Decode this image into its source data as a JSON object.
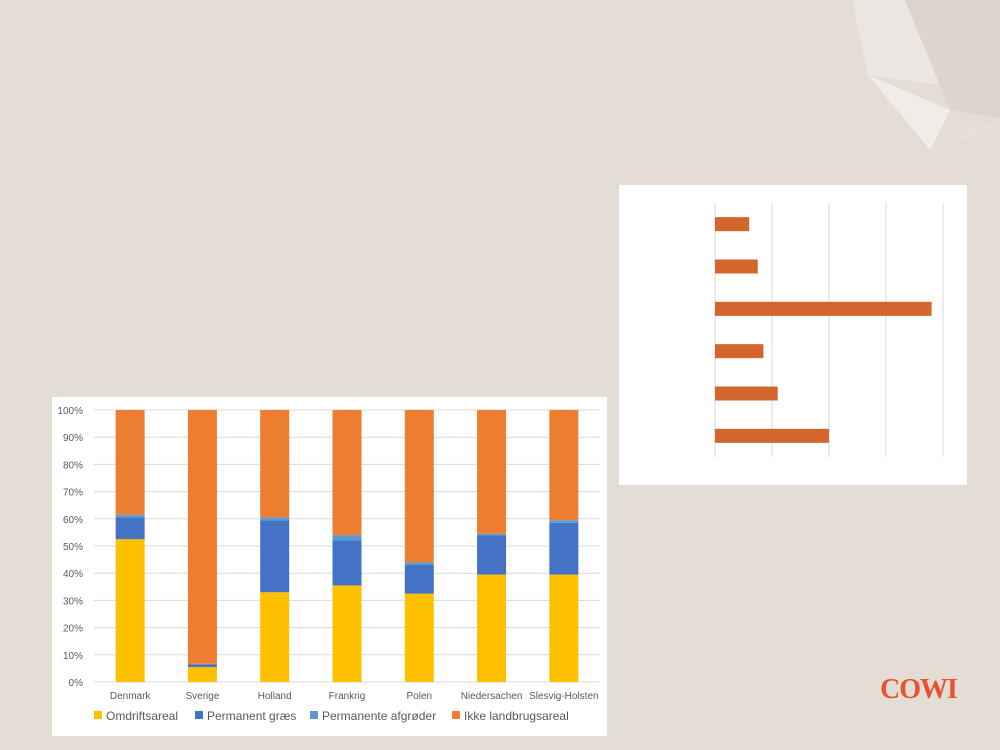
{
  "brand": {
    "logo_text": "COWI",
    "color": "#e8532e"
  },
  "colors": {
    "background": "#e4ddd6",
    "omdrift": "#ffc000",
    "permanent_graes": "#4472c4",
    "permanente_afgroder": "#5b9bd5",
    "ikke_landbrug": "#ed7d31",
    "bar_orange": "#d3652d"
  },
  "chart_data": [
    {
      "type": "bar",
      "stacked": true,
      "percent": true,
      "categories": [
        "Denmark",
        "Sverige",
        "Holland",
        "Frankrig",
        "Polen",
        "Niedersachen",
        "Slesvig-Holsten"
      ],
      "series": [
        {
          "name": "Omdriftsareal",
          "color": "#ffc000",
          "values": [
            52.5,
            5.5,
            33.0,
            35.5,
            32.5,
            39.5,
            39.5
          ]
        },
        {
          "name": "Permanent græs",
          "color": "#4472c4",
          "values": [
            8.0,
            1.0,
            26.5,
            16.5,
            10.5,
            14.5,
            19.0
          ]
        },
        {
          "name": "Permanente afgrøder",
          "color": "#5b9bd5",
          "values": [
            1.0,
            0.2,
            1.0,
            2.0,
            1.0,
            0.5,
            1.0
          ]
        },
        {
          "name": "Ikke landbrugsareal",
          "color": "#ed7d31",
          "values": [
            38.5,
            93.3,
            39.5,
            46.0,
            56.0,
            45.5,
            40.5
          ]
        }
      ],
      "ylim": [
        0,
        100
      ],
      "yticks": [
        "0%",
        "10%",
        "20%",
        "30%",
        "40%",
        "50%",
        "60%",
        "70%",
        "80%",
        "90%",
        "100%"
      ],
      "grid": true,
      "legend": "bottom"
    },
    {
      "type": "bar",
      "orientation": "horizontal",
      "series": [
        {
          "color": "#d3652d",
          "values": [
            0.6,
            0.75,
            3.8,
            0.85,
            1.1,
            2.0
          ]
        }
      ],
      "xlim": [
        0,
        4
      ],
      "grid": true,
      "labels_visible": false
    }
  ]
}
